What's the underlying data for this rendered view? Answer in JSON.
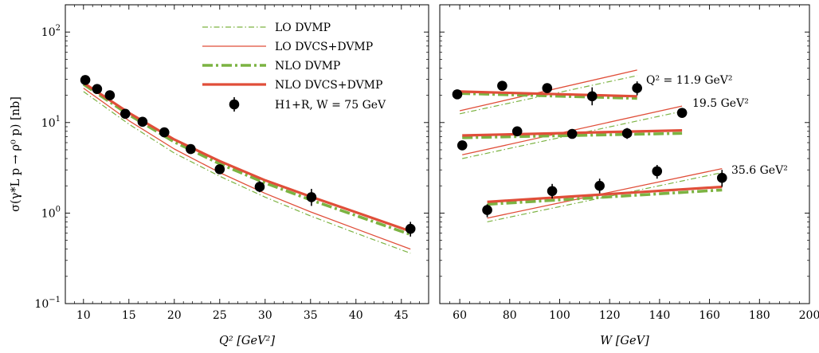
{
  "colors": {
    "dvmp": "#7cb342",
    "dvcs": "#e04e39",
    "data": "#000000"
  },
  "chart_data": [
    {
      "type": "line",
      "panel": "left",
      "xlabel": "Q² [GeV²]",
      "ylabel": "σ(γ*L p → ρ⁰ p) [nb]",
      "xlim": [
        8,
        48
      ],
      "ylim": [
        0.1,
        200
      ],
      "yscale": "log",
      "xticks": [
        10,
        15,
        20,
        25,
        30,
        35,
        40,
        45
      ],
      "yticks": [
        {
          "value": 0.1,
          "base": "10",
          "exp": "−1"
        },
        {
          "value": 1,
          "base": "10",
          "exp": "0"
        },
        {
          "value": 10,
          "base": "10",
          "exp": "1"
        },
        {
          "value": 100,
          "base": "10",
          "exp": "2"
        }
      ],
      "legend": {
        "placement": "top-center",
        "entries": [
          {
            "label": "LO DVMP",
            "series": "LO DVMP"
          },
          {
            "label": "LO DVCS+DVMP",
            "series": "LO DVCS+DVMP"
          },
          {
            "label": "NLO DVMP",
            "series": "NLO DVMP"
          },
          {
            "label": "NLO DVCS+DVMP",
            "series": "NLO DVCS+DVMP"
          },
          {
            "label": "H1+R, W = 75 GeV",
            "series": "data"
          }
        ]
      },
      "series": [
        {
          "name": "LO DVMP",
          "style": "lo-dvmp",
          "x": [
            10,
            15,
            20,
            25,
            30,
            35,
            40,
            46
          ],
          "y": [
            22,
            9.6,
            4.6,
            2.55,
            1.5,
            0.93,
            0.6,
            0.36
          ]
        },
        {
          "name": "LO DVCS+DVMP",
          "style": "lo-dvcs",
          "x": [
            10,
            15,
            20,
            25,
            30,
            35,
            40,
            46
          ],
          "y": [
            24,
            10.5,
            5.1,
            2.8,
            1.65,
            1.03,
            0.67,
            0.4
          ]
        },
        {
          "name": "NLO DVMP",
          "style": "nlo-dvmp",
          "x": [
            10,
            15,
            20,
            25,
            30,
            35,
            40,
            46
          ],
          "y": [
            26.5,
            12.2,
            6.1,
            3.5,
            2.15,
            1.4,
            0.94,
            0.58
          ]
        },
        {
          "name": "NLO DVCS+DVMP",
          "style": "nlo-dvcs",
          "x": [
            10,
            15,
            20,
            25,
            30,
            35,
            40,
            46
          ],
          "y": [
            27.5,
            12.8,
            6.5,
            3.75,
            2.3,
            1.52,
            1.02,
            0.63
          ]
        }
      ],
      "points": [
        {
          "x": 10.2,
          "y": 29.5,
          "lo": 27,
          "hi": 32
        },
        {
          "x": 11.5,
          "y": 23.5,
          "lo": 21.5,
          "hi": 25.5
        },
        {
          "x": 12.9,
          "y": 20,
          "lo": 18.2,
          "hi": 22
        },
        {
          "x": 14.6,
          "y": 12.5,
          "lo": 11.3,
          "hi": 13.8
        },
        {
          "x": 16.5,
          "y": 10.2,
          "lo": 9.3,
          "hi": 11.2
        },
        {
          "x": 18.9,
          "y": 7.8,
          "lo": 7.0,
          "hi": 8.6
        },
        {
          "x": 21.8,
          "y": 5.1,
          "lo": 4.6,
          "hi": 5.7
        },
        {
          "x": 25,
          "y": 3.05,
          "lo": 2.7,
          "hi": 3.45
        },
        {
          "x": 29.4,
          "y": 1.95,
          "lo": 1.7,
          "hi": 2.25
        },
        {
          "x": 35.1,
          "y": 1.5,
          "lo": 1.2,
          "hi": 1.85
        },
        {
          "x": 46,
          "y": 0.67,
          "lo": 0.55,
          "hi": 0.8
        }
      ]
    },
    {
      "type": "line",
      "panel": "right",
      "xlabel": "W [GeV]",
      "xlim": [
        52,
        200
      ],
      "ylim": [
        0.1,
        200
      ],
      "yscale": "log",
      "xticks": [
        60,
        80,
        100,
        120,
        140,
        160,
        180,
        200
      ],
      "groups": [
        {
          "annotation": "Q² = 11.9 GeV²",
          "series": [
            {
              "name": "LO DVMP",
              "style": "lo-dvmp",
              "x": [
                60,
                131
              ],
              "y": [
                12.5,
                33
              ]
            },
            {
              "name": "LO DVCS+DVMP",
              "style": "lo-dvcs",
              "x": [
                60,
                131
              ],
              "y": [
                13.5,
                38
              ]
            },
            {
              "name": "NLO DVMP",
              "style": "nlo-dvmp",
              "x": [
                60,
                131
              ],
              "y": [
                21,
                18.5
              ]
            },
            {
              "name": "NLO DVCS+DVMP",
              "style": "nlo-dvcs",
              "x": [
                60,
                131
              ],
              "y": [
                22,
                19.5
              ]
            }
          ],
          "points": [
            {
              "x": 59,
              "y": 20.5,
              "lo": 18.5,
              "hi": 22.7
            },
            {
              "x": 77,
              "y": 25.5,
              "lo": 23,
              "hi": 28.5
            },
            {
              "x": 95,
              "y": 24,
              "lo": 21.3,
              "hi": 27
            },
            {
              "x": 113,
              "y": 19.5,
              "lo": 15.5,
              "hi": 24.5
            },
            {
              "x": 131,
              "y": 24,
              "lo": 20,
              "hi": 28.5
            }
          ]
        },
        {
          "annotation": "19.5 GeV²",
          "series": [
            {
              "name": "LO DVMP",
              "style": "lo-dvmp",
              "x": [
                61,
                149
              ],
              "y": [
                4.0,
                13.3
              ]
            },
            {
              "name": "LO DVCS+DVMP",
              "style": "lo-dvcs",
              "x": [
                61,
                149
              ],
              "y": [
                4.4,
                15.2
              ]
            },
            {
              "name": "NLO DVMP",
              "style": "nlo-dvmp",
              "x": [
                61,
                149
              ],
              "y": [
                6.8,
                7.6
              ]
            },
            {
              "name": "NLO DVCS+DVMP",
              "style": "nlo-dvcs",
              "x": [
                61,
                149
              ],
              "y": [
                7.2,
                8.2
              ]
            }
          ],
          "points": [
            {
              "x": 61,
              "y": 5.6,
              "lo": 5.0,
              "hi": 6.3
            },
            {
              "x": 83,
              "y": 8.0,
              "lo": 7.2,
              "hi": 8.9
            },
            {
              "x": 105,
              "y": 7.5,
              "lo": 6.7,
              "hi": 8.4
            },
            {
              "x": 127,
              "y": 7.6,
              "lo": 6.6,
              "hi": 8.7
            },
            {
              "x": 149,
              "y": 12.8,
              "lo": 11.3,
              "hi": 14.4
            }
          ]
        },
        {
          "annotation": "35.6 GeV²",
          "series": [
            {
              "name": "LO DVMP",
              "style": "lo-dvmp",
              "x": [
                71,
                165
              ],
              "y": [
                0.8,
                2.8
              ]
            },
            {
              "name": "LO DVCS+DVMP",
              "style": "lo-dvcs",
              "x": [
                71,
                165
              ],
              "y": [
                0.88,
                3.1
              ]
            },
            {
              "name": "NLO DVMP",
              "style": "nlo-dvmp",
              "x": [
                71,
                165
              ],
              "y": [
                1.25,
                1.8
              ]
            },
            {
              "name": "NLO DVCS+DVMP",
              "style": "nlo-dvcs",
              "x": [
                71,
                165
              ],
              "y": [
                1.33,
                1.95
              ]
            }
          ],
          "points": [
            {
              "x": 71,
              "y": 1.08,
              "lo": 0.9,
              "hi": 1.25
            },
            {
              "x": 97,
              "y": 1.75,
              "lo": 1.45,
              "hi": 2.1
            },
            {
              "x": 116,
              "y": 2.0,
              "lo": 1.65,
              "hi": 2.4
            },
            {
              "x": 139,
              "y": 2.9,
              "lo": 2.4,
              "hi": 3.4
            },
            {
              "x": 165,
              "y": 2.45,
              "lo": 1.95,
              "hi": 3.0
            }
          ]
        }
      ]
    }
  ]
}
